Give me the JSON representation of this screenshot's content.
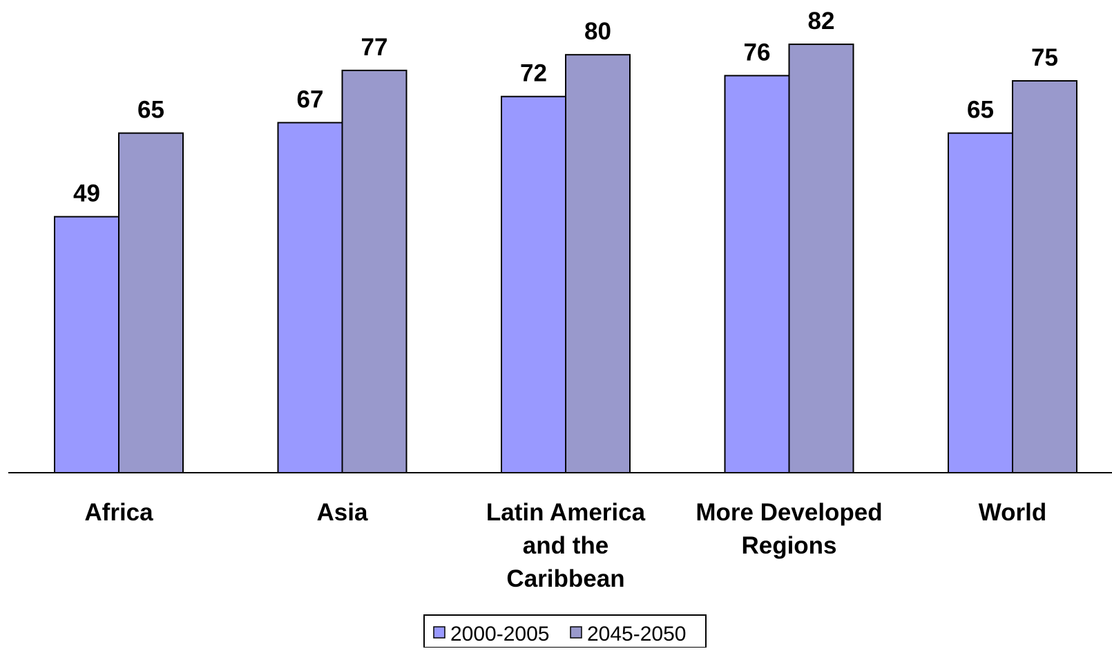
{
  "chart_data": {
    "type": "bar",
    "categories": [
      [
        "Africa"
      ],
      [
        "Asia"
      ],
      [
        "Latin America",
        "and the",
        "Caribbean"
      ],
      [
        "More Developed",
        "Regions"
      ],
      [
        "World"
      ]
    ],
    "series": [
      {
        "name": "2000-2005",
        "color": "#9999ff",
        "values": [
          49,
          67,
          72,
          76,
          65
        ]
      },
      {
        "name": "2045-2050",
        "color": "#9999cc",
        "values": [
          65,
          77,
          80,
          82,
          75
        ]
      }
    ],
    "ylim": [
      0,
      90
    ],
    "grid": false,
    "legend": "bottom",
    "data_labels": true
  }
}
